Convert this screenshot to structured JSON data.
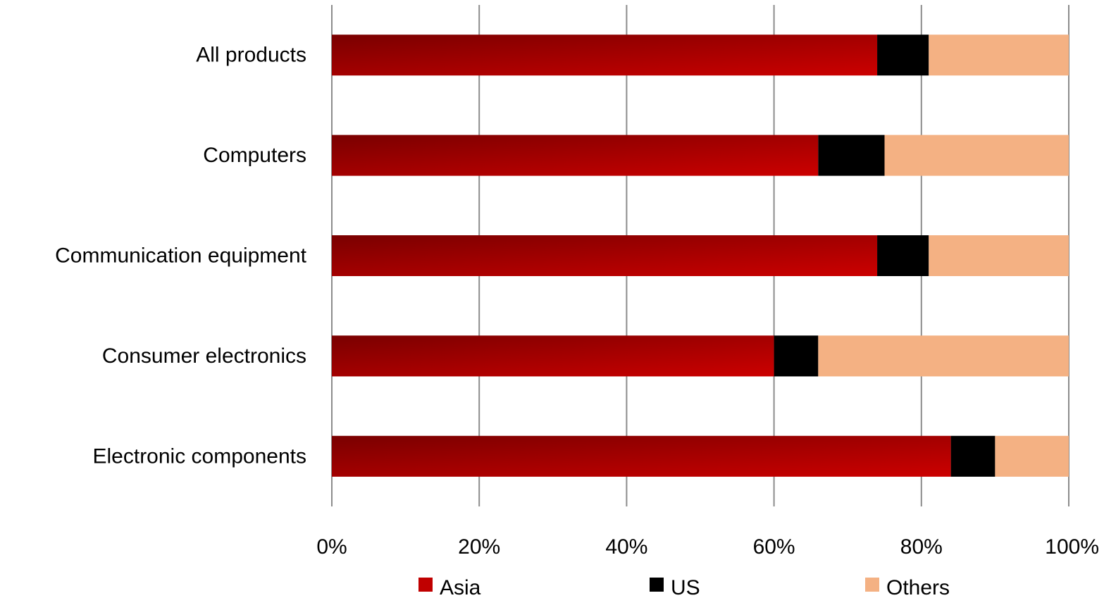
{
  "chart_data": {
    "type": "bar",
    "orientation": "horizontal",
    "stacked": "percent",
    "title": "",
    "xlabel": "",
    "ylabel": "",
    "categories": [
      "All products",
      "Computers",
      "Communication equipment",
      "Consumer electronics",
      "Electronic components"
    ],
    "series": [
      {
        "name": "Asia",
        "color": "#c00000",
        "values": [
          74,
          66,
          74,
          60,
          84
        ]
      },
      {
        "name": "US",
        "color": "#000000",
        "values": [
          7,
          9,
          7,
          6,
          6
        ]
      },
      {
        "name": "Others",
        "color": "#f4b183",
        "values": [
          19,
          25,
          19,
          34,
          10
        ]
      }
    ],
    "xlim": [
      0,
      100
    ],
    "xticks": [
      "0%",
      "20%",
      "40%",
      "60%",
      "80%",
      "100%"
    ],
    "grid": true,
    "legend_position": "bottom"
  }
}
